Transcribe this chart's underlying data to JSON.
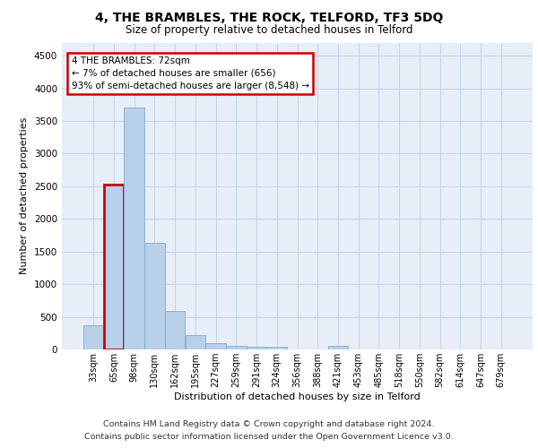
{
  "title": "4, THE BRAMBLES, THE ROCK, TELFORD, TF3 5DQ",
  "subtitle": "Size of property relative to detached houses in Telford",
  "xlabel": "Distribution of detached houses by size in Telford",
  "ylabel": "Number of detached properties",
  "categories": [
    "33sqm",
    "65sqm",
    "98sqm",
    "130sqm",
    "162sqm",
    "195sqm",
    "227sqm",
    "259sqm",
    "291sqm",
    "324sqm",
    "356sqm",
    "388sqm",
    "421sqm",
    "453sqm",
    "485sqm",
    "518sqm",
    "550sqm",
    "582sqm",
    "614sqm",
    "647sqm",
    "679sqm"
  ],
  "values": [
    370,
    2520,
    3700,
    1630,
    590,
    220,
    100,
    60,
    40,
    40,
    0,
    0,
    60,
    0,
    0,
    0,
    0,
    0,
    0,
    0,
    0
  ],
  "bar_color": "#b8d0e8",
  "bar_edge_color": "#7aadd4",
  "highlight_bar_index": 1,
  "highlight_bar_edge_color": "#cc0000",
  "annotation_text_line1": "4 THE BRAMBLES: 72sqm",
  "annotation_text_line2": "← 7% of detached houses are smaller (656)",
  "annotation_text_line3": "93% of semi-detached houses are larger (8,548) →",
  "ylim": [
    0,
    4700
  ],
  "yticks": [
    0,
    500,
    1000,
    1500,
    2000,
    2500,
    3000,
    3500,
    4000,
    4500
  ],
  "grid_color": "#c8d4e8",
  "plot_bg_color": "#e8eef8",
  "footer_line1": "Contains HM Land Registry data © Crown copyright and database right 2024.",
  "footer_line2": "Contains public sector information licensed under the Open Government Licence v3.0."
}
